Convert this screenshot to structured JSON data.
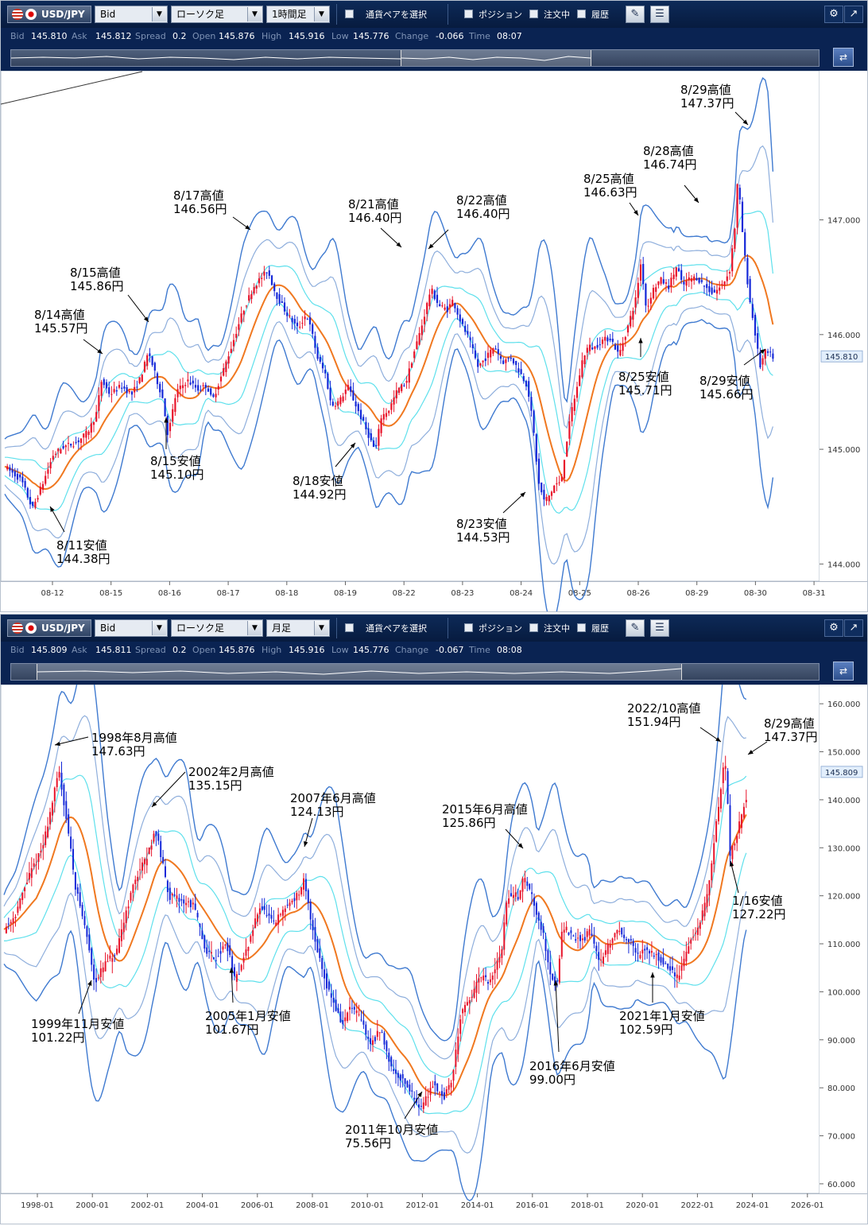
{
  "panels": [
    {
      "toolbar": {
        "pair": "USD/JPY",
        "price_type": "Bid",
        "chart_type": "ローソク足",
        "timeframe": "1時間足",
        "pair_select": "通貨ペアを選択",
        "position": "ポジション",
        "orders": "注文中",
        "history": "履歴"
      },
      "info": {
        "bid_label": "Bid",
        "bid": "145.810",
        "ask_label": "Ask",
        "ask": "145.812",
        "spread_label": "Spread",
        "spread": "0.2",
        "open_label": "Open",
        "open": "145.876",
        "high_label": "High",
        "high": "145.916",
        "low_label": "Low",
        "low": "145.776",
        "change_label": "Change",
        "change": "-0.066",
        "time_label": "Time",
        "time": "08:07"
      }
    },
    {
      "toolbar": {
        "pair": "USD/JPY",
        "price_type": "Bid",
        "chart_type": "ローソク足",
        "timeframe": "月足",
        "pair_select": "通貨ペアを選択",
        "position": "ポジション",
        "orders": "注文中",
        "history": "履歴"
      },
      "info": {
        "bid_label": "Bid",
        "bid": "145.809",
        "ask_label": "Ask",
        "ask": "145.811",
        "spread_label": "Spread",
        "spread": "0.2",
        "open_label": "Open",
        "open": "145.876",
        "high_label": "High",
        "high": "145.916",
        "low_label": "Low",
        "low": "145.776",
        "change_label": "Change",
        "change": "-0.067",
        "time_label": "Time",
        "time": "08:08"
      }
    }
  ],
  "colors": {
    "bull": "#e8142b",
    "bear": "#1428d8",
    "ma": "#f07820",
    "band1": "#5ee0ec",
    "band2": "#8eaedc",
    "band3": "#3f7ad0",
    "current_price_bg": "#e2eefc"
  },
  "chart_data": [
    {
      "type": "candlestick",
      "timeframe": "1時間足",
      "ylim": [
        143.85,
        148.3
      ],
      "yticks": [
        "147.000",
        "146.000",
        "145.000",
        "144.000"
      ],
      "xticks": [
        "08-12",
        "08-15",
        "08-16",
        "08-17",
        "08-18",
        "08-19",
        "08-22",
        "08-23",
        "08-24",
        "08-25",
        "08-26",
        "08-29",
        "08-30",
        "08-31"
      ],
      "current_price": "145.810",
      "path": [
        [
          0,
          144.85
        ],
        [
          12,
          144.73
        ],
        [
          20,
          144.48
        ],
        [
          28,
          144.72
        ],
        [
          35,
          144.95
        ],
        [
          42,
          145.02
        ],
        [
          52,
          145.06
        ],
        [
          60,
          145.15
        ],
        [
          66,
          145.3
        ],
        [
          70,
          145.6
        ],
        [
          76,
          145.48
        ],
        [
          84,
          145.55
        ],
        [
          92,
          145.48
        ],
        [
          98,
          145.62
        ],
        [
          104,
          145.85
        ],
        [
          110,
          145.6
        ],
        [
          114,
          145.45
        ],
        [
          118,
          145.12
        ],
        [
          124,
          145.5
        ],
        [
          132,
          145.6
        ],
        [
          140,
          145.52
        ],
        [
          146,
          145.56
        ],
        [
          150,
          145.42
        ],
        [
          156,
          145.62
        ],
        [
          164,
          145.9
        ],
        [
          172,
          146.2
        ],
        [
          180,
          146.42
        ],
        [
          190,
          146.56
        ],
        [
          196,
          146.35
        ],
        [
          204,
          146.18
        ],
        [
          212,
          146.05
        ],
        [
          218,
          146.18
        ],
        [
          222,
          146.02
        ],
        [
          226,
          145.8
        ],
        [
          232,
          145.65
        ],
        [
          236,
          145.38
        ],
        [
          242,
          145.42
        ],
        [
          248,
          145.55
        ],
        [
          256,
          145.32
        ],
        [
          262,
          145.15
        ],
        [
          268,
          144.98
        ],
        [
          272,
          145.28
        ],
        [
          278,
          145.35
        ],
        [
          284,
          145.52
        ],
        [
          290,
          145.58
        ],
        [
          296,
          145.85
        ],
        [
          302,
          146.1
        ],
        [
          308,
          146.4
        ],
        [
          314,
          146.25
        ],
        [
          320,
          146.22
        ],
        [
          324,
          146.3
        ],
        [
          330,
          146.1
        ],
        [
          336,
          145.95
        ],
        [
          342,
          145.72
        ],
        [
          348,
          145.8
        ],
        [
          354,
          145.9
        ],
        [
          360,
          145.76
        ],
        [
          366,
          145.8
        ],
        [
          372,
          145.68
        ],
        [
          378,
          145.55
        ],
        [
          382,
          145.2
        ],
        [
          386,
          144.7
        ],
        [
          390,
          144.55
        ],
        [
          394,
          144.6
        ],
        [
          398,
          144.7
        ],
        [
          402,
          144.7
        ],
        [
          406,
          145.05
        ],
        [
          410,
          145.35
        ],
        [
          414,
          145.55
        ],
        [
          418,
          145.8
        ],
        [
          422,
          145.9
        ],
        [
          426,
          145.88
        ],
        [
          432,
          145.95
        ],
        [
          438,
          145.97
        ],
        [
          444,
          145.82
        ],
        [
          450,
          146.05
        ],
        [
          456,
          146.3
        ],
        [
          460,
          146.63
        ],
        [
          464,
          146.2
        ],
        [
          468,
          146.38
        ],
        [
          474,
          146.48
        ],
        [
          480,
          146.42
        ],
        [
          486,
          146.6
        ],
        [
          490,
          146.42
        ],
        [
          494,
          146.48
        ],
        [
          500,
          146.5
        ],
        [
          506,
          146.42
        ],
        [
          512,
          146.36
        ],
        [
          518,
          146.42
        ],
        [
          524,
          146.55
        ],
        [
          528,
          146.95
        ],
        [
          530,
          147.37
        ],
        [
          534,
          146.8
        ],
        [
          538,
          146.35
        ],
        [
          542,
          146.05
        ],
        [
          546,
          145.72
        ],
        [
          550,
          145.85
        ],
        [
          556,
          145.8
        ]
      ],
      "annotations": [
        {
          "date": "8/11",
          "kind": "安値",
          "price": "144.38"
        },
        {
          "date": "8/14",
          "kind": "高値",
          "price": "145.57"
        },
        {
          "date": "8/15",
          "kind": "高値",
          "price": "145.86"
        },
        {
          "date": "8/15",
          "kind": "安値",
          "price": "145.10"
        },
        {
          "date": "8/17",
          "kind": "高値",
          "price": "146.56"
        },
        {
          "date": "8/18",
          "kind": "安値",
          "price": "144.92"
        },
        {
          "date": "8/21",
          "kind": "高値",
          "price": "146.40"
        },
        {
          "date": "8/22",
          "kind": "高値",
          "price": "146.40"
        },
        {
          "date": "8/23",
          "kind": "安値",
          "price": "144.53"
        },
        {
          "date": "8/25",
          "kind": "高値",
          "price": "146.63"
        },
        {
          "date": "8/25",
          "kind": "安値",
          "price": "145.71"
        },
        {
          "date": "8/28",
          "kind": "高値",
          "price": "146.74"
        },
        {
          "date": "8/29",
          "kind": "高値",
          "price": "147.37"
        },
        {
          "date": "8/29",
          "kind": "安値",
          "price": "145.66"
        }
      ]
    },
    {
      "type": "candlestick",
      "timeframe": "月足",
      "ylim": [
        58,
        164
      ],
      "yticks": [
        "160.000",
        "150.000",
        "140.000",
        "130.000",
        "120.000",
        "110.000",
        "100.000",
        "90.000",
        "80.000",
        "70.000",
        "60.000"
      ],
      "xticks": [
        "1998-01",
        "2000-01",
        "2002-01",
        "2004-01",
        "2006-01",
        "2008-01",
        "2010-01",
        "2012-01",
        "2014-01",
        "2016-01",
        "2018-01",
        "2020-01",
        "2022-01",
        "2024-01",
        "2026-01"
      ],
      "current_price": "145.809",
      "path": [
        [
          1996.6,
          113
        ],
        [
          1997.0,
          116
        ],
        [
          1997.5,
          124
        ],
        [
          1998.0,
          130
        ],
        [
          1998.6,
          146
        ],
        [
          1998.9,
          135
        ],
        [
          1999.2,
          122
        ],
        [
          1999.6,
          112
        ],
        [
          1999.9,
          102
        ],
        [
          2000.3,
          106
        ],
        [
          2000.7,
          108
        ],
        [
          2001.0,
          116
        ],
        [
          2001.4,
          124
        ],
        [
          2001.8,
          128
        ],
        [
          2002.1,
          134
        ],
        [
          2002.6,
          120
        ],
        [
          2003.0,
          119
        ],
        [
          2003.5,
          118
        ],
        [
          2003.9,
          109
        ],
        [
          2004.3,
          107
        ],
        [
          2004.7,
          110
        ],
        [
          2005.0,
          102
        ],
        [
          2005.5,
          110
        ],
        [
          2005.9,
          118
        ],
        [
          2006.4,
          114
        ],
        [
          2006.9,
          118
        ],
        [
          2007.4,
          121
        ],
        [
          2007.5,
          123
        ],
        [
          2007.9,
          111
        ],
        [
          2008.3,
          102
        ],
        [
          2008.9,
          93
        ],
        [
          2009.2,
          97
        ],
        [
          2009.6,
          94
        ],
        [
          2009.9,
          89
        ],
        [
          2010.3,
          92
        ],
        [
          2010.7,
          84
        ],
        [
          2011.2,
          81
        ],
        [
          2011.6,
          77
        ],
        [
          2011.8,
          76
        ],
        [
          2012.2,
          81
        ],
        [
          2012.6,
          78
        ],
        [
          2012.9,
          82
        ],
        [
          2013.2,
          95
        ],
        [
          2013.6,
          99
        ],
        [
          2013.9,
          103
        ],
        [
          2014.3,
          102
        ],
        [
          2014.7,
          109
        ],
        [
          2014.9,
          120
        ],
        [
          2015.3,
          120
        ],
        [
          2015.5,
          124
        ],
        [
          2015.8,
          120
        ],
        [
          2016.2,
          112
        ],
        [
          2016.5,
          103
        ],
        [
          2016.7,
          101
        ],
        [
          2016.9,
          114
        ],
        [
          2017.3,
          111
        ],
        [
          2017.7,
          111
        ],
        [
          2017.9,
          113
        ],
        [
          2018.3,
          106
        ],
        [
          2018.7,
          111
        ],
        [
          2018.9,
          113
        ],
        [
          2019.3,
          111
        ],
        [
          2019.7,
          107
        ],
        [
          2019.9,
          109
        ],
        [
          2020.2,
          108
        ],
        [
          2020.6,
          106
        ],
        [
          2020.9,
          104
        ],
        [
          2021.1,
          103
        ],
        [
          2021.5,
          110
        ],
        [
          2021.9,
          114
        ],
        [
          2022.2,
          121
        ],
        [
          2022.5,
          135
        ],
        [
          2022.8,
          149
        ],
        [
          2022.9,
          142
        ],
        [
          2023.0,
          128
        ],
        [
          2023.3,
          134
        ],
        [
          2023.6,
          141
        ],
        [
          2023.8,
          149
        ],
        [
          2023.9,
          144
        ],
        [
          2023.95,
          145.8
        ]
      ],
      "annotations": [
        {
          "label": "1998年8月高値",
          "price": "147.63円"
        },
        {
          "label": "1999年11月安値",
          "price": "101.22円"
        },
        {
          "label": "2002年2月高値",
          "price": "135.15円"
        },
        {
          "label": "2005年1月安値",
          "price": "101.67円"
        },
        {
          "label": "2007年6月高値",
          "price": "124.13円"
        },
        {
          "label": "2011年10月安値",
          "price": "75.56円"
        },
        {
          "label": "2015年6月高値",
          "price": "125.86円"
        },
        {
          "label": "2016年6月安値",
          "price": "99.00円"
        },
        {
          "label": "2021年1月安値",
          "price": "102.59円"
        },
        {
          "label": "2022/10高値",
          "price": "151.94円"
        },
        {
          "label": "1/16安値",
          "price": "127.22円"
        },
        {
          "label": "8/29高値",
          "price": "147.37円"
        }
      ]
    }
  ]
}
